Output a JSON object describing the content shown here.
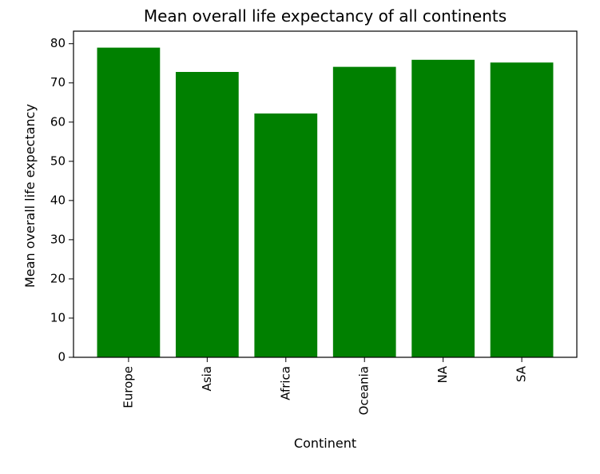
{
  "chart_data": {
    "type": "bar",
    "title": "Mean overall life expectancy of all continents",
    "xlabel": "Continent",
    "ylabel": "Mean overall life expectancy",
    "categories": [
      "Europe",
      "Asia",
      "Africa",
      "Oceania",
      "NA",
      "SA"
    ],
    "values": [
      79.0,
      72.8,
      62.2,
      74.1,
      75.9,
      75.2
    ],
    "ylim": [
      0,
      83.2
    ],
    "yticks": [
      "0",
      "10",
      "20",
      "30",
      "40",
      "50",
      "60",
      "70",
      "80"
    ],
    "bar_color": "#008000",
    "grid": false,
    "legend": "none"
  }
}
